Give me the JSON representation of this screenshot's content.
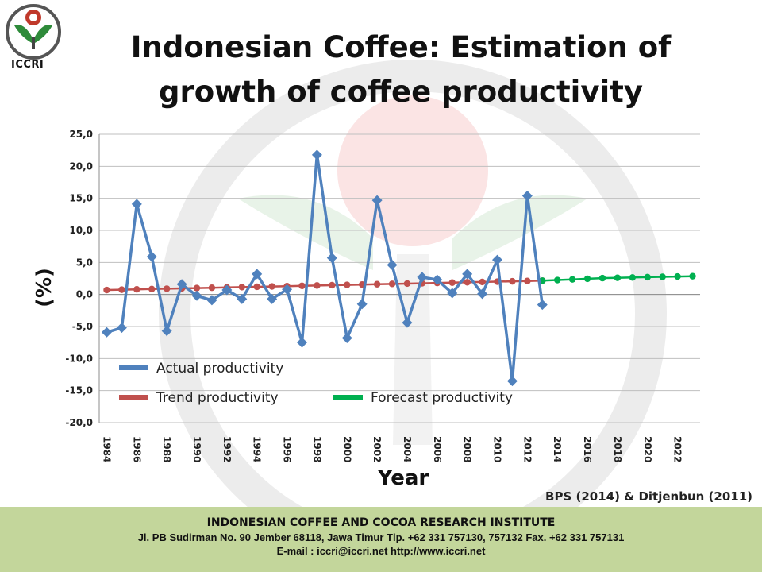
{
  "logo": {
    "text": "ICCRI",
    "icon": "iccri-logo-icon"
  },
  "title": "Indonesian Coffee: Estimation of growth of coffee productivity",
  "source_note": "BPS (2014) & Ditjenbun (2011)",
  "footer": {
    "institute": "INDONESIAN COFFEE AND COCOA RESEARCH INSTITUTE",
    "address": "Jl. PB Sudirman No. 90 Jember 68118, Jawa Timur Tlp. +62 331 757130, 757132 Fax. +62 331 757131",
    "contact": "E-mail : iccri@iccri.net  http://www.iccri.net"
  },
  "chart_data": {
    "type": "line",
    "xlabel": "Year",
    "ylabel": "(%)",
    "ylim": [
      -20,
      25
    ],
    "y_ticks": [
      "25,0",
      "20,0",
      "15,0",
      "10,0",
      "5,0",
      "0,0",
      "-5,0",
      "-10,0",
      "-15,0",
      "-20,0"
    ],
    "x_tick_labels": [
      "1984",
      "1986",
      "1988",
      "1990",
      "1992",
      "1994",
      "1996",
      "1998",
      "2000",
      "2002",
      "2004",
      "2006",
      "2008",
      "2010",
      "2012",
      "2014",
      "2016",
      "2018",
      "2020",
      "2022"
    ],
    "grid": "horizontal",
    "legend_placement": "bottom-left",
    "series": [
      {
        "name": "Actual productivity",
        "color": "#4f81bd",
        "marker": "diamond",
        "x": [
          1984,
          1985,
          1986,
          1987,
          1988,
          1989,
          1990,
          1991,
          1992,
          1993,
          1994,
          1995,
          1996,
          1997,
          1998,
          1999,
          2000,
          2001,
          2002,
          2003,
          2004,
          2005,
          2006,
          2007,
          2008,
          2009,
          2010,
          2011,
          2012,
          2013
        ],
        "values": [
          -5.9,
          -5.2,
          14.1,
          5.9,
          -5.7,
          1.6,
          -0.2,
          -0.9,
          0.7,
          -0.7,
          3.2,
          -0.7,
          0.8,
          -7.5,
          21.8,
          5.7,
          -6.8,
          -1.5,
          14.7,
          4.6,
          -4.4,
          2.7,
          2.3,
          0.2,
          3.2,
          0.1,
          5.4,
          -13.5,
          15.4,
          -1.6
        ]
      },
      {
        "name": "Trend productivity",
        "color": "#c0504d",
        "marker": "circle",
        "x": [
          1984,
          1985,
          1986,
          1987,
          1988,
          1989,
          1990,
          1991,
          1992,
          1993,
          1994,
          1995,
          1996,
          1997,
          1998,
          1999,
          2000,
          2001,
          2002,
          2003,
          2004,
          2005,
          2006,
          2007,
          2008,
          2009,
          2010,
          2011,
          2012,
          2013
        ],
        "values": [
          0.7,
          0.75,
          0.8,
          0.85,
          0.9,
          0.95,
          1.0,
          1.05,
          1.1,
          1.15,
          1.2,
          1.25,
          1.3,
          1.35,
          1.4,
          1.45,
          1.5,
          1.55,
          1.6,
          1.65,
          1.7,
          1.75,
          1.8,
          1.85,
          1.9,
          1.95,
          2.0,
          2.05,
          2.1,
          2.15
        ]
      },
      {
        "name": "Forecast productivity",
        "color": "#00b050",
        "marker": "circle",
        "x": [
          2013,
          2014,
          2015,
          2016,
          2017,
          2018,
          2019,
          2020,
          2021,
          2022,
          2023
        ],
        "values": [
          2.15,
          2.25,
          2.35,
          2.45,
          2.55,
          2.6,
          2.65,
          2.7,
          2.75,
          2.8,
          2.85
        ]
      }
    ]
  }
}
